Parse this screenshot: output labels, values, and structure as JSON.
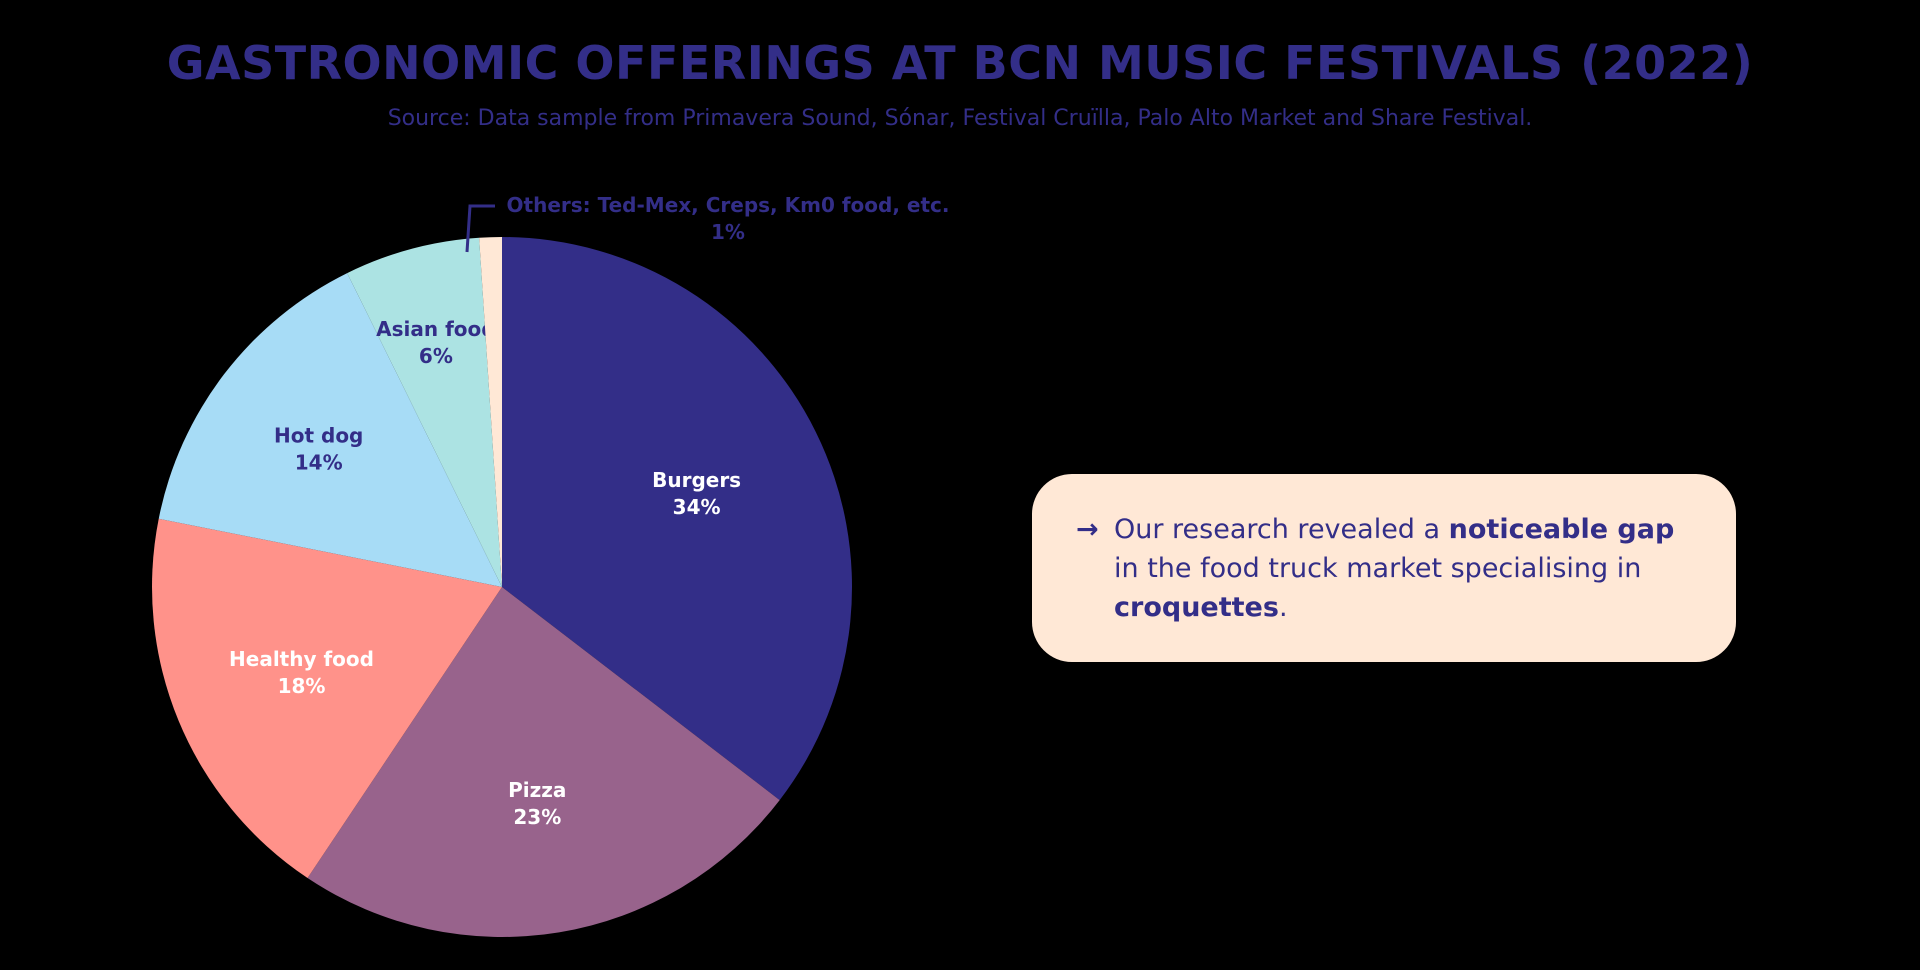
{
  "title": "GASTRONOMIC OFFERINGS AT BCN MUSIC FESTIVALS (2022)",
  "subtitle": "Source: Data sample from Primavera Sound, Sónar, Festival Cruïlla, Palo Alto Market and Share Festival.",
  "chart_data": {
    "type": "pie",
    "slices": [
      {
        "label": "Burgers",
        "value": 34,
        "value_label": "34%",
        "color": "#332e88",
        "label_color": "#ffffff"
      },
      {
        "label": "Pizza",
        "value": 23,
        "value_label": "23%",
        "color": "#98638c",
        "label_color": "#ffffff"
      },
      {
        "label": "Healthy food",
        "value": 18,
        "value_label": "18%",
        "color": "#ff928a",
        "label_color": "#ffffff"
      },
      {
        "label": "Hot dog",
        "value": 14,
        "value_label": "14%",
        "color": "#a7dcf6",
        "label_color": "#332e88"
      },
      {
        "label": "Asian food",
        "value": 6,
        "value_label": "6%",
        "color": "#ace3e3",
        "label_color": "#332e88"
      },
      {
        "label": "Others: Ted-Mex, Creps, Km0 food, etc.",
        "value": 1,
        "value_label": "1%",
        "color": "#ffe8d6",
        "label_color": "#332e88"
      }
    ]
  },
  "callout": {
    "arrow": "→",
    "text_before": "Our research revealed a ",
    "highlight_1": "noticeable gap",
    "text_middle": " in the food truck market specialising in ",
    "highlight_2": "croquettes",
    "text_after": "."
  }
}
